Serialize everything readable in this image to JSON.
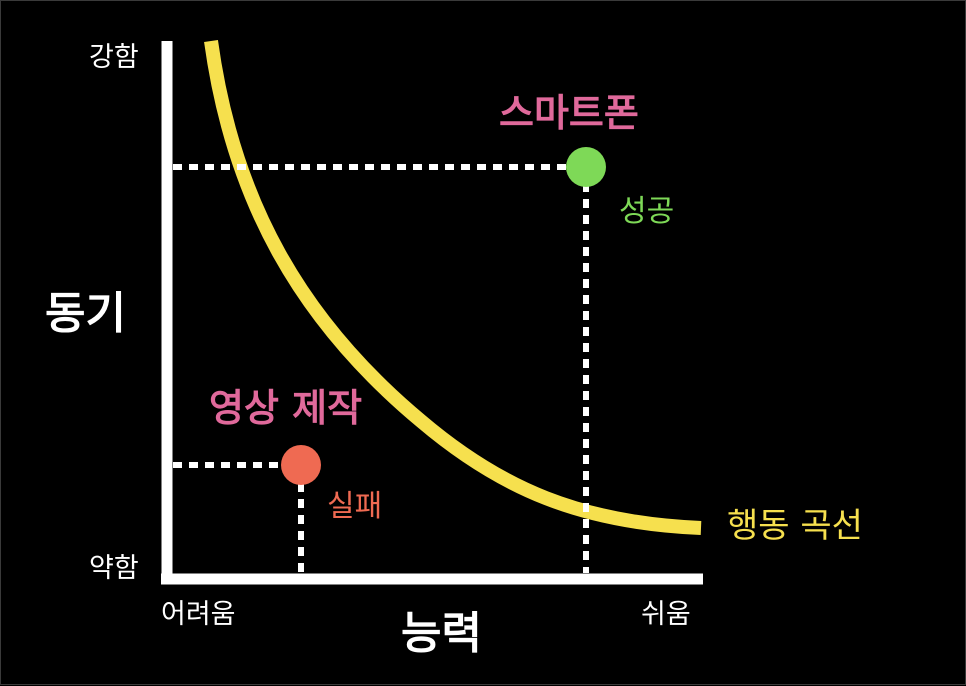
{
  "colors": {
    "background": "#000000",
    "axis": "#ffffff",
    "curve": "#f6e04e",
    "smartphone": "#e0699b",
    "success": "#7ed957",
    "failure": "#ef6a52"
  },
  "axes": {
    "y_label": "동기",
    "y_high": "강함",
    "y_low": "약함",
    "x_label": "능력",
    "x_hard": "어려움",
    "x_easy": "쉬움"
  },
  "curve": {
    "label": "행동 곡선"
  },
  "points": [
    {
      "title": "스마트폰",
      "status": "성공",
      "color": "#7ed957",
      "title_color": "#e0699b"
    },
    {
      "title": "영상 제작",
      "status": "실패",
      "color": "#ef6a52",
      "title_color": "#e0699b"
    }
  ]
}
